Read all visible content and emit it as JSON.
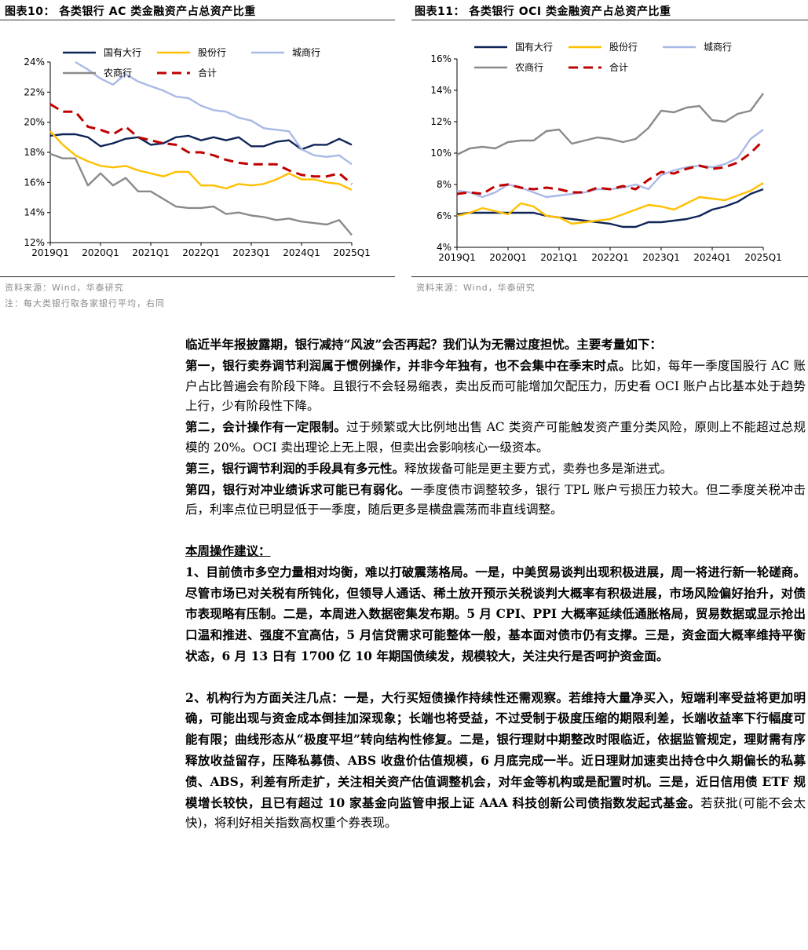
{
  "colors": {
    "state_owned": "#0f2557",
    "joint_stock": "#ffc000",
    "city": "#a9b9e6",
    "rural": "#8a8a8a",
    "total": "#c00000"
  },
  "left_figure": {
    "title": "图表10：  各类银行 AC 类金融资产占总资产比重",
    "source": "资料来源：Wind，华泰研究",
    "note": "注：每大类银行取各家银行平均，右同"
  },
  "right_figure": {
    "title": "图表11：  各类银行 OCI 类金融资产占总资产比重",
    "source": "资料来源：Wind，华泰研究"
  },
  "chart_data": [
    {
      "type": "line",
      "title": "各类银行 AC 类金融资产占总资产比重",
      "xlabel": "",
      "ylabel": "",
      "ylim": [
        12,
        24
      ],
      "yticks": [
        "12%",
        "14%",
        "16%",
        "18%",
        "20%",
        "22%",
        "24%"
      ],
      "x": [
        "2019Q1",
        "2019Q2",
        "2019Q3",
        "2019Q4",
        "2020Q1",
        "2020Q2",
        "2020Q3",
        "2020Q4",
        "2021Q1",
        "2021Q2",
        "2021Q3",
        "2021Q4",
        "2022Q1",
        "2022Q2",
        "2022Q3",
        "2022Q4",
        "2023Q1",
        "2023Q2",
        "2023Q3",
        "2023Q4",
        "2024Q1",
        "2024Q2",
        "2024Q3",
        "2024Q4",
        "2025Q1"
      ],
      "xtick_labels": [
        "2019Q1",
        "2020Q1",
        "2021Q1",
        "2022Q1",
        "2023Q1",
        "2024Q1",
        "2025Q1"
      ],
      "legend_position": "top",
      "series": [
        {
          "name": "国有大行",
          "key": "state_owned",
          "dash": false,
          "values": [
            19.1,
            19.2,
            19.2,
            19.0,
            18.4,
            18.6,
            18.9,
            19.0,
            18.5,
            18.6,
            19.0,
            19.1,
            18.8,
            19.0,
            18.8,
            19.0,
            18.4,
            18.4,
            18.7,
            18.8,
            18.2,
            18.5,
            18.5,
            18.9,
            18.5
          ]
        },
        {
          "name": "股份行",
          "key": "joint_stock",
          "dash": false,
          "values": [
            19.4,
            18.5,
            17.8,
            17.4,
            17.1,
            17.0,
            17.1,
            16.8,
            16.6,
            16.4,
            16.7,
            16.7,
            15.8,
            15.8,
            15.6,
            15.9,
            15.8,
            15.9,
            16.2,
            16.6,
            16.2,
            16.2,
            16.0,
            15.9,
            15.5
          ]
        },
        {
          "name": "城商行",
          "key": "city",
          "dash": false,
          "values": [
            null,
            null,
            24.0,
            23.5,
            22.9,
            22.5,
            23.2,
            22.7,
            22.4,
            22.1,
            21.7,
            21.6,
            21.1,
            20.8,
            20.7,
            20.3,
            20.1,
            19.6,
            19.5,
            19.4,
            18.2,
            17.8,
            17.7,
            17.8,
            17.2
          ]
        },
        {
          "name": "农商行",
          "key": "rural",
          "dash": false,
          "values": [
            17.9,
            17.6,
            17.6,
            15.8,
            16.6,
            15.8,
            16.3,
            15.4,
            15.4,
            14.9,
            14.4,
            14.3,
            14.3,
            14.4,
            13.9,
            14.0,
            13.8,
            13.7,
            13.5,
            13.6,
            13.4,
            13.3,
            13.2,
            13.5,
            12.5
          ]
        },
        {
          "name": "合计",
          "key": "total",
          "dash": true,
          "values": [
            21.2,
            20.7,
            20.7,
            19.7,
            19.5,
            19.2,
            19.7,
            19.0,
            18.8,
            18.6,
            18.5,
            18.0,
            18.0,
            17.8,
            17.5,
            17.3,
            17.2,
            17.2,
            17.2,
            16.8,
            16.5,
            16.4,
            16.4,
            16.6,
            15.9
          ]
        }
      ]
    },
    {
      "type": "line",
      "title": "各类银行 OCI 类金融资产占总资产比重",
      "xlabel": "",
      "ylabel": "",
      "ylim": [
        4,
        16
      ],
      "yticks": [
        "4%",
        "6%",
        "8%",
        "10%",
        "12%",
        "14%",
        "16%"
      ],
      "x": [
        "2019Q1",
        "2019Q2",
        "2019Q3",
        "2019Q4",
        "2020Q1",
        "2020Q2",
        "2020Q3",
        "2020Q4",
        "2021Q1",
        "2021Q2",
        "2021Q3",
        "2021Q4",
        "2022Q1",
        "2022Q2",
        "2022Q3",
        "2022Q4",
        "2023Q1",
        "2023Q2",
        "2023Q3",
        "2023Q4",
        "2024Q1",
        "2024Q2",
        "2024Q3",
        "2024Q4",
        "2025Q1"
      ],
      "xtick_labels": [
        "2019Q1",
        "2020Q1",
        "2021Q1",
        "2022Q1",
        "2023Q1",
        "2024Q1",
        "2025Q1"
      ],
      "legend_position": "top",
      "series": [
        {
          "name": "国有大行",
          "key": "state_owned",
          "dash": false,
          "values": [
            6.1,
            6.2,
            6.2,
            6.2,
            6.2,
            6.2,
            6.2,
            6.0,
            5.9,
            5.8,
            5.7,
            5.6,
            5.5,
            5.3,
            5.3,
            5.6,
            5.6,
            5.7,
            5.8,
            6.0,
            6.4,
            6.6,
            6.9,
            7.4,
            7.7
          ]
        },
        {
          "name": "股份行",
          "key": "joint_stock",
          "dash": false,
          "values": [
            6.0,
            6.2,
            6.5,
            6.3,
            6.1,
            6.8,
            6.6,
            6.0,
            5.9,
            5.5,
            5.6,
            5.7,
            5.8,
            6.1,
            6.4,
            6.7,
            6.6,
            6.4,
            6.8,
            7.2,
            7.1,
            7.0,
            7.3,
            7.6,
            8.1
          ]
        },
        {
          "name": "城商行",
          "key": "city",
          "dash": false,
          "values": [
            7.6,
            7.5,
            7.2,
            7.5,
            8.0,
            7.8,
            7.5,
            7.2,
            7.3,
            7.4,
            7.5,
            7.7,
            7.7,
            7.8,
            8.0,
            7.7,
            8.6,
            8.9,
            9.1,
            9.2,
            9.1,
            9.3,
            9.7,
            10.9,
            11.5
          ]
        },
        {
          "name": "农商行",
          "key": "rural",
          "dash": false,
          "values": [
            9.9,
            10.3,
            10.4,
            10.3,
            10.7,
            10.8,
            10.8,
            11.4,
            11.5,
            10.6,
            10.8,
            11.0,
            10.9,
            10.7,
            10.9,
            11.6,
            12.7,
            12.6,
            12.9,
            13.0,
            12.1,
            12.0,
            12.5,
            12.7,
            13.8
          ]
        },
        {
          "name": "合计",
          "key": "total",
          "dash": true,
          "values": [
            7.4,
            7.5,
            7.4,
            7.9,
            8.0,
            7.8,
            7.7,
            7.8,
            7.7,
            7.5,
            7.5,
            7.8,
            7.7,
            7.9,
            7.7,
            8.3,
            8.8,
            8.7,
            9.0,
            9.2,
            9.0,
            9.1,
            9.4,
            10.0,
            10.8
          ]
        }
      ]
    }
  ],
  "body": {
    "intro_bold": "临近半年报披露期，银行减持“风波”会否再起？我们认为无需过度担忧。主要考量如下：",
    "p1_bold": "第一，银行卖券调节利润属于惯例操作，并非今年独有，也不会集中在季末时点。",
    "p1_text": "比如，每年一季度国股行 AC 账户占比普遍会有阶段下降。且银行不会轻易缩表，卖出反而可能增加欠配压力，历史看 OCI 账户占比基本处于趋势上行，少有阶段性下降。",
    "p2_bold": "第二，会计操作有一定限制。",
    "p2_text": "过于频繁或大比例地出售 AC 类资产可能触发资产重分类风险，原则上不能超过总规模的 20%。OCI 卖出理论上无上限，但卖出会影响核心一级资本。",
    "p3_bold": "第三，银行调节利润的手段具有多元性。",
    "p3_text": "释放拨备可能是更主要方式，卖券也多是渐进式。",
    "p4_bold": "第四，银行对冲业绩诉求可能已有弱化。",
    "p4_text": "一季度债市调整较多，银行 TPL 账户亏损压力较大。但二季度关税冲击后，利率点位已明显低于一季度，随后更多是横盘震荡而非直线调整。",
    "section_heading": "本周操作建议：",
    "s1": "1、目前债市多空力量相对均衡，难以打破震荡格局。一是，中美贸易谈判出现积极进展，周一将进行新一轮磋商。尽管市场已对关税有所钝化，但领导人通话、稀土放开预示关税谈判大概率有积极进展，市场风险偏好抬升，对债市表现略有压制。二是，本周进入数据密集发布期。5 月 CPI、PPI 大概率延续低通胀格局，贸易数据或显示抢出口温和推进、强度不宜高估，5 月信贷需求可能整体一般，基本面对债市仍有支撑。三是，资金面大概率维持平衡状态，6 月 13 日有 1700 亿 10 年期国债续发，规模较大，关注央行是否呵护资金面。",
    "s2_bold": "2、机构行为方面关注几点：一是，大行买短债操作持续性还需观察。若维持大量净买入，短端利率受益将更加明确，可能出现与资金成本倒挂加深现象；长端也将受益，不过受制于极度压缩的期限利差，长端收益率下行幅度可能有限；曲线形态从“极度平坦”转向结构性修复。二是，银行理财中期整改时限临近，依据监管规定，理财需有序释放收益留存，压降私募债、ABS 收盘价估值规模，6 月底完成一半。近日理财加速卖出持仓中久期偏长的私募债、ABS，利差有所走扩，关注相关资产估值调整机会，对年金等机构或是配置时机。三是，近日信用债 ETF 规模增长较快，且已有超过 10 家基金向监管申报上证 AAA 科技创新公司债指数发起式基金。",
    "s2_text": "若获批(可能不会太快)，将利好相关指数高权重个券表现。"
  }
}
